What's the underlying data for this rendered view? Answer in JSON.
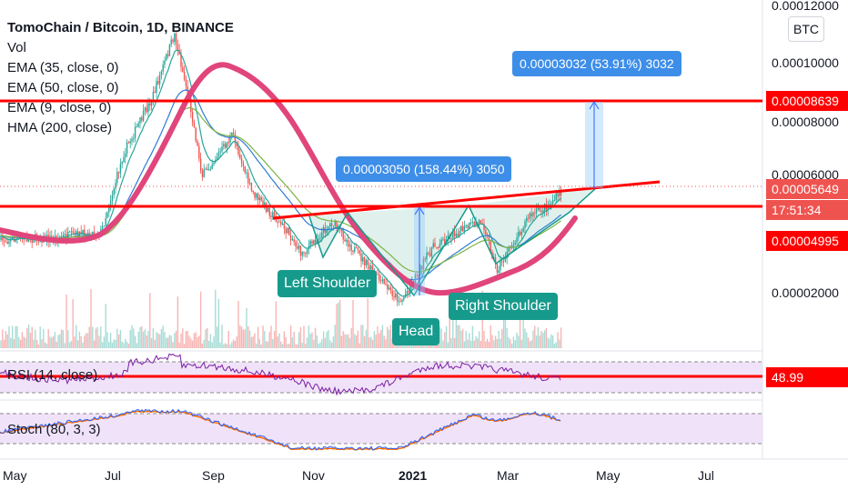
{
  "legend": {
    "title": "TomoChain / Bitcoin, 1D, BINANCE",
    "items": [
      "Vol",
      "EMA (35, close, 0)",
      "EMA (50, close, 0)",
      "EMA (9, close, 0)",
      "HMA (200, close)"
    ]
  },
  "currency_button": "BTC",
  "y_axis_labels": [
    "0.00012000",
    "0.00010000",
    "0.00008000",
    "0.00006000",
    "0.00002000"
  ],
  "price_tags": {
    "resistance": "0.00008639",
    "current": "0.00005649",
    "countdown": "17:51:34",
    "support": "0.00004995",
    "rsi": "48.99"
  },
  "x_axis_labels": [
    "May",
    "Jul",
    "Sep",
    "Nov",
    "2021",
    "Mar",
    "May",
    "Jul"
  ],
  "annotations": {
    "target_box": "0.00003032 (53.91%) 3032",
    "depth_box": "0.00003050 (158.44%) 3050",
    "left_shoulder": "Left Shoulder",
    "head": "Head",
    "right_shoulder": "Right Shoulder"
  },
  "indicators": {
    "rsi_label": "RSI (14, close)",
    "stoch_label": "Stoch (80, 3, 3)"
  },
  "colors": {
    "up": "#26a69a",
    "down": "#ef5350",
    "hma": "#e0457b",
    "red_line": "#ff0000",
    "badge_blue": "#3d8ee8",
    "badge_teal": "#169a8c",
    "rsi_bg": "#e9d8f7",
    "rsi_line": "#7b1fa2",
    "stoch_k": "#2962ff",
    "stoch_d": "#ff6d00"
  },
  "chart_data": {
    "type": "candlestick",
    "title": "TomoChain / Bitcoin, 1D, BINANCE",
    "x_range": [
      "2020-05",
      "2021-07"
    ],
    "y_ticks": [
      2e-05,
      6e-05,
      8e-05,
      0.0001,
      0.00012
    ],
    "price_path": [
      {
        "x": "2020-05",
        "y": 4.03e-05
      },
      {
        "x": "2020-06",
        "y": 4.1e-05
      },
      {
        "x": "2020-07",
        "y": 4.3e-05
      },
      {
        "x": "2020-07-15",
        "y": 7e-05
      },
      {
        "x": "2020-08",
        "y": 8.8e-05
      },
      {
        "x": "2020-08-15",
        "y": 0.00011
      },
      {
        "x": "2020-08-25",
        "y": 8.5e-05
      },
      {
        "x": "2020-09",
        "y": 6.2e-05
      },
      {
        "x": "2020-09-20",
        "y": 7.6e-05
      },
      {
        "x": "2020-10",
        "y": 5.7e-05
      },
      {
        "x": "2020-10-25",
        "y": 4.2e-05
      },
      {
        "x": "2020-11",
        "y": 3.55e-05
      },
      {
        "x": "2020-11-20",
        "y": 4.65e-05
      },
      {
        "x": "2020-12",
        "y": 3.85e-05
      },
      {
        "x": "2020-12-20",
        "y": 2.6e-05
      },
      {
        "x": "2021-01",
        "y": 1.95e-05
      },
      {
        "x": "2021-01-20",
        "y": 3.75e-05
      },
      {
        "x": "2021-02",
        "y": 4.2e-05
      },
      {
        "x": "2021-02-20",
        "y": 4.7e-05
      },
      {
        "x": "2021-03",
        "y": 3e-05
      },
      {
        "x": "2021-03-20",
        "y": 4.8e-05
      },
      {
        "x": "2021-04",
        "y": 5.2e-05
      },
      {
        "x": "2021-04-10",
        "y": 5.65e-05
      }
    ],
    "levels": {
      "resistance": 8.639e-05,
      "support": 4.995e-05,
      "current": 5.649e-05
    },
    "rsi": {
      "name": "RSI (14, close)",
      "last": 48.99
    },
    "stoch": {
      "name": "Stoch (80, 3, 3)"
    },
    "annotations": [
      "Left Shoulder",
      "Head",
      "Right Shoulder",
      "0.00003050 (158.44%) 3050",
      "0.00003032 (53.91%) 3032"
    ]
  }
}
